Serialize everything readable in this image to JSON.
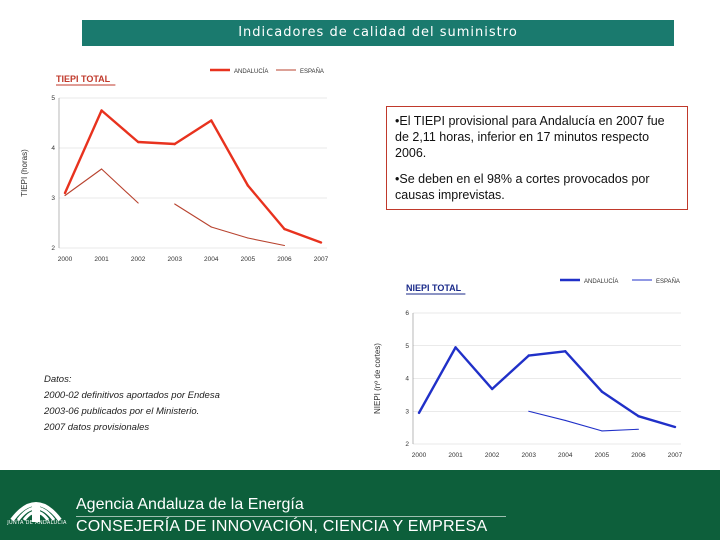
{
  "header": {
    "title": "Indicadores de calidad del suministro"
  },
  "colors": {
    "header_bg": "#1a7a6e",
    "andalucia_tiepi": "#e8321e",
    "espana_tiepi": "#b8432f",
    "andalucia_niepi": "#2030c8",
    "espana_niepi": "#2030c8",
    "footer_bg": "#0d5f3b"
  },
  "chart_data": [
    {
      "type": "line",
      "title": "TIEPI TOTAL",
      "ylabel": "TIEPI (horas)",
      "xlabel": "",
      "x": [
        "2000",
        "2001",
        "2002",
        "2003",
        "2004",
        "2005",
        "2006",
        "2007"
      ],
      "ylim": [
        2,
        5
      ],
      "yticks": [
        "2",
        "3",
        "4",
        "5"
      ],
      "legend_position": "top",
      "series": [
        {
          "name": "ANDALUCÍA",
          "values": [
            3.1,
            4.75,
            4.12,
            4.08,
            4.55,
            3.25,
            2.38,
            2.11
          ]
        },
        {
          "name": "ESPAÑA",
          "values": [
            3.05,
            3.58,
            2.9,
            2.88,
            2.42,
            2.2,
            2.05,
            null
          ]
        }
      ]
    },
    {
      "type": "line",
      "title": "NIEPI TOTAL",
      "ylabel": "NIEPI (nº de cortes)",
      "xlabel": "",
      "x": [
        "2000",
        "2001",
        "2002",
        "2003",
        "2004",
        "2005",
        "2006",
        "2007"
      ],
      "ylim": [
        2,
        6
      ],
      "yticks": [
        "2",
        "3",
        "4",
        "5",
        "6"
      ],
      "legend_position": "top",
      "series": [
        {
          "name": "ANDALUCÍA",
          "values": [
            2.95,
            4.95,
            3.68,
            4.7,
            4.83,
            3.6,
            2.85,
            2.52
          ]
        },
        {
          "name": "ESPAÑA",
          "values": [
            null,
            null,
            null,
            3.0,
            2.72,
            2.4,
            2.45,
            null
          ]
        }
      ]
    }
  ],
  "textbox": {
    "bullet1": "•El TIEPI provisional para Andalucía en 2007 fue de 2,11 horas, inferior en 17 minutos respecto 2006.",
    "bullet2": "•Se deben en el 98% a cortes provocados por causas imprevistas."
  },
  "datos": {
    "title": "Datos:",
    "line1": "2000-02 definitivos aportados por Endesa",
    "line2": "2003-06 publicados por el Ministerio.",
    "line3": "2007 datos provisionales"
  },
  "footer": {
    "logo_caption": "JUNTA DE ANDALUCIA",
    "line1": "Agencia Andaluza de la Energía",
    "line2": "CONSEJERÍA DE INNOVACIÓN, CIENCIA Y EMPRESA"
  }
}
